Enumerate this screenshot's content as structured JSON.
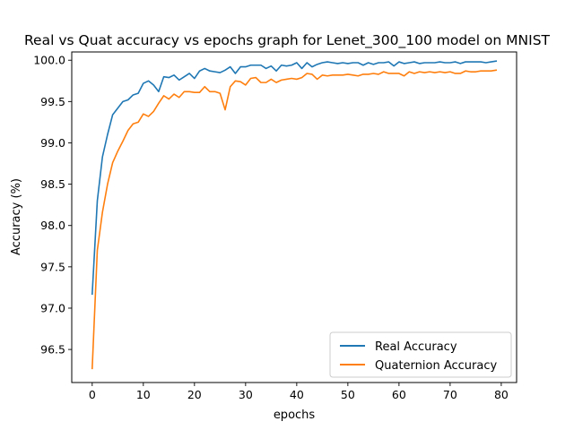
{
  "chart_data": {
    "type": "line",
    "title": "Real vs Quat accuracy vs epochs graph for Lenet_300_100 model on MNIST",
    "xlabel": "epochs",
    "ylabel": "Accuracy (%)",
    "xlim": [
      -4,
      83
    ],
    "ylim": [
      96.1,
      100.1
    ],
    "xticks": [
      0,
      10,
      20,
      30,
      40,
      50,
      60,
      70,
      80
    ],
    "yticks": [
      96.5,
      97.0,
      97.5,
      98.0,
      98.5,
      99.0,
      99.5,
      100.0
    ],
    "xtick_labels": [
      "0",
      "10",
      "20",
      "30",
      "40",
      "50",
      "60",
      "70",
      "80"
    ],
    "ytick_labels": [
      "96.5",
      "97.0",
      "97.5",
      "98.0",
      "98.5",
      "99.0",
      "99.5",
      "100.0"
    ],
    "grid": false,
    "legend_position": "lower-right",
    "x": [
      0,
      1,
      2,
      3,
      4,
      5,
      6,
      7,
      8,
      9,
      10,
      11,
      12,
      13,
      14,
      15,
      16,
      17,
      18,
      19,
      20,
      21,
      22,
      23,
      24,
      25,
      26,
      27,
      28,
      29,
      30,
      31,
      32,
      33,
      34,
      35,
      36,
      37,
      38,
      39,
      40,
      41,
      42,
      43,
      44,
      45,
      46,
      47,
      48,
      49,
      50,
      51,
      52,
      53,
      54,
      55,
      56,
      57,
      58,
      59,
      60,
      61,
      62,
      63,
      64,
      65,
      66,
      67,
      68,
      69,
      70,
      71,
      72,
      73,
      74,
      75,
      76,
      77,
      78,
      79
    ],
    "series": [
      {
        "name": "Real Accuracy",
        "color": "#1f77b4",
        "values": [
          97.17,
          98.3,
          98.83,
          99.1,
          99.34,
          99.42,
          99.5,
          99.52,
          99.58,
          99.6,
          99.72,
          99.75,
          99.7,
          99.62,
          99.8,
          99.79,
          99.82,
          99.76,
          99.8,
          99.84,
          99.78,
          99.87,
          99.9,
          99.87,
          99.86,
          99.85,
          99.88,
          99.92,
          99.84,
          99.92,
          99.92,
          99.94,
          99.94,
          99.94,
          99.9,
          99.93,
          99.87,
          99.94,
          99.93,
          99.94,
          99.97,
          99.9,
          99.97,
          99.92,
          99.95,
          99.97,
          99.98,
          99.97,
          99.96,
          99.97,
          99.96,
          99.97,
          99.97,
          99.94,
          99.97,
          99.95,
          99.97,
          99.97,
          99.98,
          99.93,
          99.98,
          99.96,
          99.97,
          99.98,
          99.96,
          99.97,
          99.97,
          99.97,
          99.98,
          99.97,
          99.97,
          99.98,
          99.96,
          99.98,
          99.98,
          99.98,
          99.98,
          99.97,
          99.98,
          99.99
        ]
      },
      {
        "name": "Quaternion Accuracy",
        "color": "#ff7f0e",
        "values": [
          96.27,
          97.7,
          98.16,
          98.5,
          98.76,
          98.9,
          99.02,
          99.15,
          99.23,
          99.25,
          99.35,
          99.32,
          99.38,
          99.48,
          99.57,
          99.53,
          99.59,
          99.55,
          99.62,
          99.62,
          99.61,
          99.61,
          99.68,
          99.62,
          99.62,
          99.6,
          99.4,
          99.68,
          99.75,
          99.74,
          99.7,
          99.78,
          99.79,
          99.73,
          99.73,
          99.77,
          99.73,
          99.76,
          99.77,
          99.78,
          99.77,
          99.79,
          99.84,
          99.83,
          99.77,
          99.82,
          99.81,
          99.82,
          99.82,
          99.82,
          99.83,
          99.82,
          99.81,
          99.83,
          99.83,
          99.84,
          99.83,
          99.86,
          99.84,
          99.84,
          99.84,
          99.81,
          99.86,
          99.84,
          99.86,
          99.85,
          99.86,
          99.85,
          99.86,
          99.85,
          99.86,
          99.84,
          99.84,
          99.87,
          99.86,
          99.86,
          99.87,
          99.87,
          99.87,
          99.88
        ]
      }
    ]
  }
}
